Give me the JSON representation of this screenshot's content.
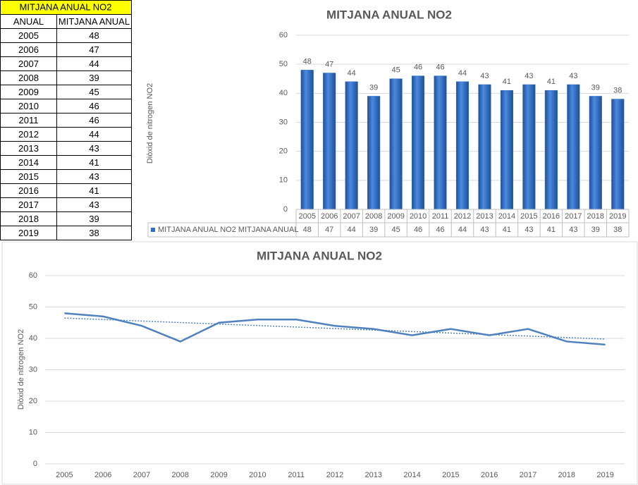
{
  "table": {
    "title": "MITJANA ANUAL NO2",
    "header": [
      "ANUAL",
      "MITJANA ANUAL"
    ],
    "rows": [
      [
        2005,
        48
      ],
      [
        2006,
        47
      ],
      [
        2007,
        44
      ],
      [
        2008,
        39
      ],
      [
        2009,
        45
      ],
      [
        2010,
        46
      ],
      [
        2011,
        46
      ],
      [
        2012,
        44
      ],
      [
        2013,
        43
      ],
      [
        2014,
        41
      ],
      [
        2015,
        43
      ],
      [
        2016,
        41
      ],
      [
        2017,
        43
      ],
      [
        2018,
        39
      ],
      [
        2019,
        38
      ]
    ]
  },
  "chart_data": [
    {
      "type": "bar",
      "title": "MITJANA ANUAL NO2",
      "y_label": "Diòxid de nitrogen NO2",
      "categories": [
        "2005",
        "2006",
        "2007",
        "2008",
        "2009",
        "2010",
        "2011",
        "2012",
        "2013",
        "2014",
        "2015",
        "2016",
        "2017",
        "2018",
        "2019"
      ],
      "series": [
        {
          "name": "MITJANA ANUAL NO2 MITJANA ANUAL",
          "color": "#2f6ec4",
          "values": [
            48,
            47,
            44,
            39,
            45,
            46,
            46,
            44,
            43,
            41,
            43,
            41,
            43,
            39,
            38
          ]
        }
      ],
      "ylim": [
        0,
        60
      ],
      "yticks": [
        0,
        10,
        20,
        30,
        40,
        50,
        60
      ],
      "grid": true,
      "data_labels": true,
      "data_table": true
    },
    {
      "type": "line",
      "title": "MITJANA ANUAL NO2",
      "y_label": "Diòxid de nitrogen NO2",
      "categories": [
        "2005",
        "2006",
        "2007",
        "2008",
        "2009",
        "2010",
        "2011",
        "2012",
        "2013",
        "2014",
        "2015",
        "2016",
        "2017",
        "2018",
        "2019"
      ],
      "series": [
        {
          "color": "#4f81bd",
          "values": [
            48,
            47,
            44,
            39,
            45,
            46,
            46,
            44,
            43,
            41,
            43,
            41,
            43,
            39,
            38
          ]
        }
      ],
      "ylim": [
        0,
        60
      ],
      "yticks": [
        0,
        10,
        20,
        30,
        40,
        50,
        60
      ],
      "grid": true,
      "trendline": "linear"
    }
  ]
}
